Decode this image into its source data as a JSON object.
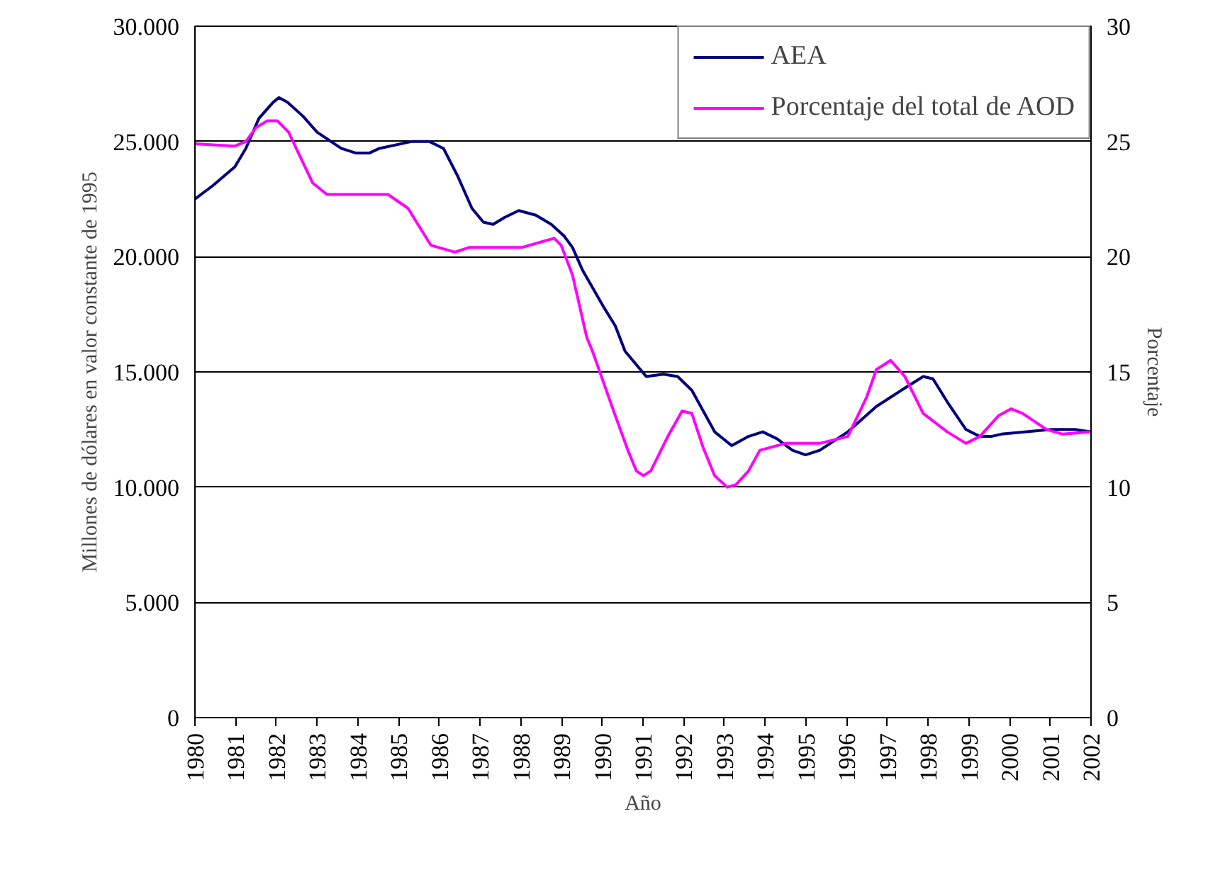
{
  "chart_data": {
    "type": "line",
    "xlabel": "Año",
    "ylabel": "Millones de dólares en valor constante de 1995",
    "y2label": "Porcentaje",
    "xlim": [
      1980,
      2002
    ],
    "xticks": [
      1980,
      1981,
      1982,
      1983,
      1984,
      1985,
      1986,
      1987,
      1988,
      1989,
      1990,
      1991,
      1992,
      1993,
      1994,
      1995,
      1996,
      1997,
      1998,
      1999,
      2000,
      2001,
      2002
    ],
    "ylim": [
      0,
      30000
    ],
    "yticks": [
      {
        "value": 0,
        "label": "0"
      },
      {
        "value": 5000,
        "label": "5.000"
      },
      {
        "value": 10000,
        "label": "10.000"
      },
      {
        "value": 15000,
        "label": "15.000"
      },
      {
        "value": 20000,
        "label": "20.000"
      },
      {
        "value": 25000,
        "label": "25.000"
      },
      {
        "value": 30000,
        "label": "30.000"
      }
    ],
    "y2lim": [
      0,
      30
    ],
    "y2ticks": [
      0,
      5,
      10,
      15,
      20,
      25,
      30
    ],
    "grid": "y",
    "legend": "top right",
    "marker": "none",
    "line_style": "solid",
    "series": [
      {
        "name": "AEA",
        "color": "#000080",
        "x": [
          1980.0,
          1980.45,
          1980.98,
          1981.25,
          1981.57,
          1981.92,
          1982.06,
          1982.27,
          1982.65,
          1983.0,
          1983.59,
          1983.94,
          1984.29,
          1984.53,
          1985.33,
          1985.75,
          1986.1,
          1986.45,
          1986.8,
          1987.08,
          1987.32,
          1987.6,
          1987.95,
          1988.37,
          1988.75,
          1989.06,
          1989.27,
          1989.52,
          1990.04,
          1990.32,
          1990.56,
          1991.08,
          1991.5,
          1991.85,
          1992.2,
          1992.48,
          1992.76,
          1993.18,
          1993.59,
          1993.94,
          1994.29,
          1994.67,
          1994.99,
          1995.34,
          1996.03,
          1996.73,
          1997.43,
          1997.88,
          1998.12,
          1998.47,
          1998.93,
          1999.27,
          1999.55,
          1999.8,
          2001.02,
          2001.61,
          2002.0
        ],
        "values": [
          22500,
          23100,
          23900,
          24700,
          26000,
          26700,
          26900,
          26700,
          26100,
          25400,
          24700,
          24500,
          24500,
          24700,
          25000,
          25000,
          24700,
          23500,
          22100,
          21500,
          21400,
          21700,
          22000,
          21800,
          21400,
          20900,
          20400,
          19400,
          17800,
          17000,
          15900,
          14800,
          14900,
          14800,
          14200,
          13300,
          12400,
          11800,
          12200,
          12400,
          12100,
          11600,
          11400,
          11600,
          12400,
          13500,
          14300,
          14800,
          14700,
          13700,
          12500,
          12200,
          12200,
          12300,
          12500,
          12500,
          12400
        ]
      },
      {
        "name": "Porcentaje del total de AOD",
        "color": "#ff00ff",
        "axis": "y2",
        "x": [
          1980.0,
          1980.98,
          1981.25,
          1981.5,
          1981.78,
          1982.02,
          1982.3,
          1982.54,
          1982.89,
          1983.24,
          1984.74,
          1985.23,
          1985.79,
          1986.38,
          1986.73,
          1988.02,
          1988.82,
          1988.99,
          1989.27,
          1989.62,
          1989.76,
          1990.28,
          1990.63,
          1990.84,
          1991.01,
          1991.19,
          1991.61,
          1991.96,
          1992.2,
          1992.48,
          1992.76,
          1993.07,
          1993.28,
          1993.59,
          1993.87,
          1994.5,
          1995.34,
          1996.03,
          1996.49,
          1996.73,
          1997.08,
          1997.43,
          1997.88,
          1998.47,
          1998.93,
          1999.27,
          1999.73,
          2000.04,
          2000.32,
          2000.91,
          2001.3,
          2002.0
        ],
        "values": [
          24.9,
          24.8,
          25.0,
          25.6,
          25.9,
          25.9,
          25.4,
          24.5,
          23.2,
          22.7,
          22.7,
          22.1,
          20.5,
          20.2,
          20.4,
          20.4,
          20.8,
          20.5,
          19.2,
          16.5,
          15.9,
          13.3,
          11.6,
          10.7,
          10.5,
          10.7,
          12.2,
          13.3,
          13.2,
          11.7,
          10.5,
          10.0,
          10.1,
          10.7,
          11.6,
          11.9,
          11.9,
          12.2,
          13.9,
          15.1,
          15.5,
          14.8,
          13.2,
          12.4,
          11.9,
          12.2,
          13.1,
          13.4,
          13.2,
          12.5,
          12.3,
          12.4
        ]
      }
    ]
  }
}
